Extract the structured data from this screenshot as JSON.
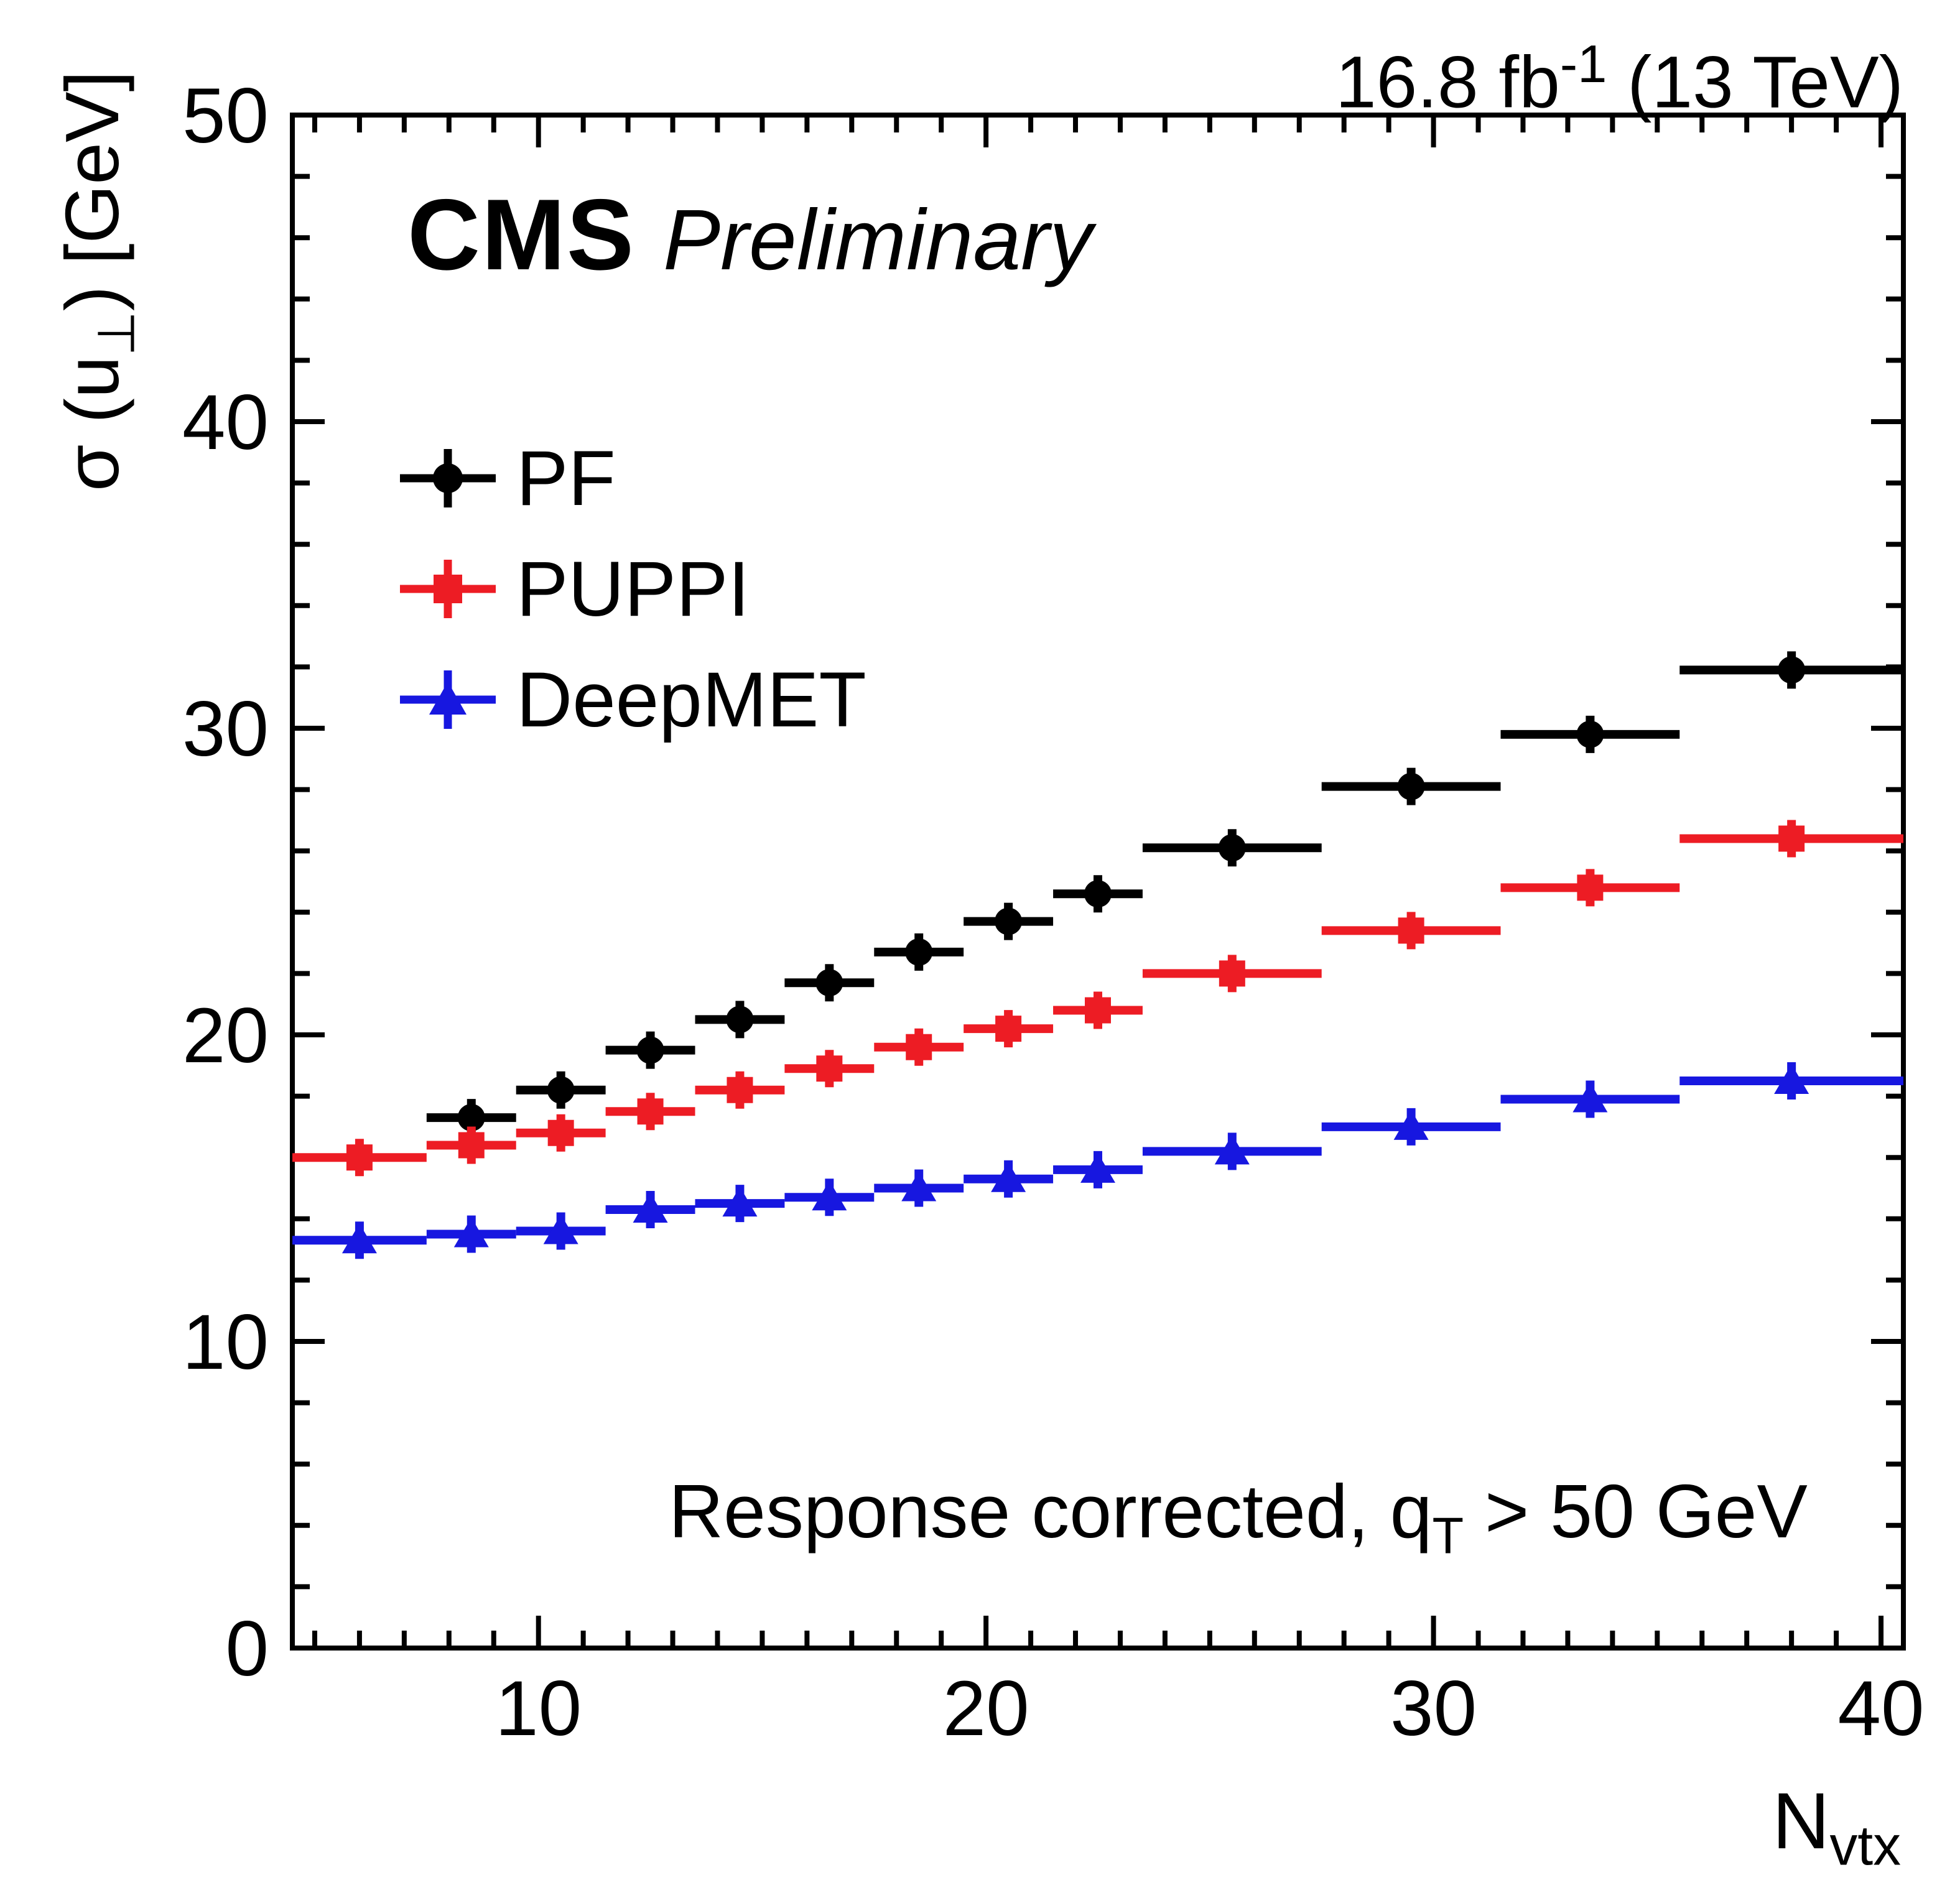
{
  "header": {
    "lumi_prefix": "16.8 fb",
    "lumi_sup": "-1",
    "lumi_suffix": " (13 TeV)",
    "experiment": "CMS",
    "preliminary": "Preliminary"
  },
  "annotation": {
    "prefix": "Response corrected, q",
    "sub": "T",
    "suffix": " > 50 GeV"
  },
  "axes": {
    "y_title_prefix": "σ (u",
    "y_title_sub": "⊥",
    "y_title_suffix": ") [GeV]",
    "x_title_prefix": "N",
    "x_title_sub": "vtx"
  },
  "chart_data": {
    "type": "scatter",
    "title": "",
    "xlabel": "N_vtx",
    "ylabel": "sigma(u_perp) [GeV]",
    "xlim": [
      4.5,
      40.5
    ],
    "ylim": [
      0,
      50
    ],
    "xticks": [
      10,
      20,
      30,
      40
    ],
    "yticks": [
      0,
      10,
      20,
      30,
      40,
      50
    ],
    "x_minor_step": 1,
    "y_minor_step": 2,
    "grid": false,
    "legend_position": "top-left",
    "series": [
      {
        "name": "PF",
        "color": "#000000",
        "marker": "circle",
        "x": [
          8.5,
          10.5,
          12.5,
          14.5,
          16.5,
          18.5,
          20.5,
          22.5,
          25.5,
          29.5,
          33.5,
          38
        ],
        "xerr": [
          1,
          1,
          1,
          1,
          1,
          1,
          1,
          1,
          2,
          2,
          2,
          2.5
        ],
        "y": [
          17.3,
          18.2,
          19.5,
          20.5,
          21.7,
          22.7,
          23.7,
          24.6,
          26.1,
          28.1,
          29.8,
          31.9
        ]
      },
      {
        "name": "PUPPI",
        "color": "#ed1c24",
        "marker": "square",
        "x": [
          6,
          8.5,
          10.5,
          12.5,
          14.5,
          16.5,
          18.5,
          20.5,
          22.5,
          25.5,
          29.5,
          33.5,
          38
        ],
        "xerr": [
          1.5,
          1,
          1,
          1,
          1,
          1,
          1,
          1,
          1,
          2,
          2,
          2,
          2.5
        ],
        "y": [
          16.0,
          16.4,
          16.8,
          17.5,
          18.2,
          18.9,
          19.6,
          20.2,
          20.8,
          22.0,
          23.4,
          24.8,
          26.4
        ]
      },
      {
        "name": "DeepMET",
        "color": "#1717e0",
        "marker": "triangle",
        "x": [
          6,
          8.5,
          10.5,
          12.5,
          14.5,
          16.5,
          18.5,
          20.5,
          22.5,
          25.5,
          29.5,
          33.5,
          38
        ],
        "xerr": [
          1.5,
          1,
          1,
          1,
          1,
          1,
          1,
          1,
          1,
          2,
          2,
          2,
          2.5
        ],
        "y": [
          13.3,
          13.5,
          13.6,
          14.3,
          14.5,
          14.7,
          15.0,
          15.3,
          15.6,
          16.2,
          17.0,
          17.9,
          18.5
        ]
      }
    ]
  }
}
